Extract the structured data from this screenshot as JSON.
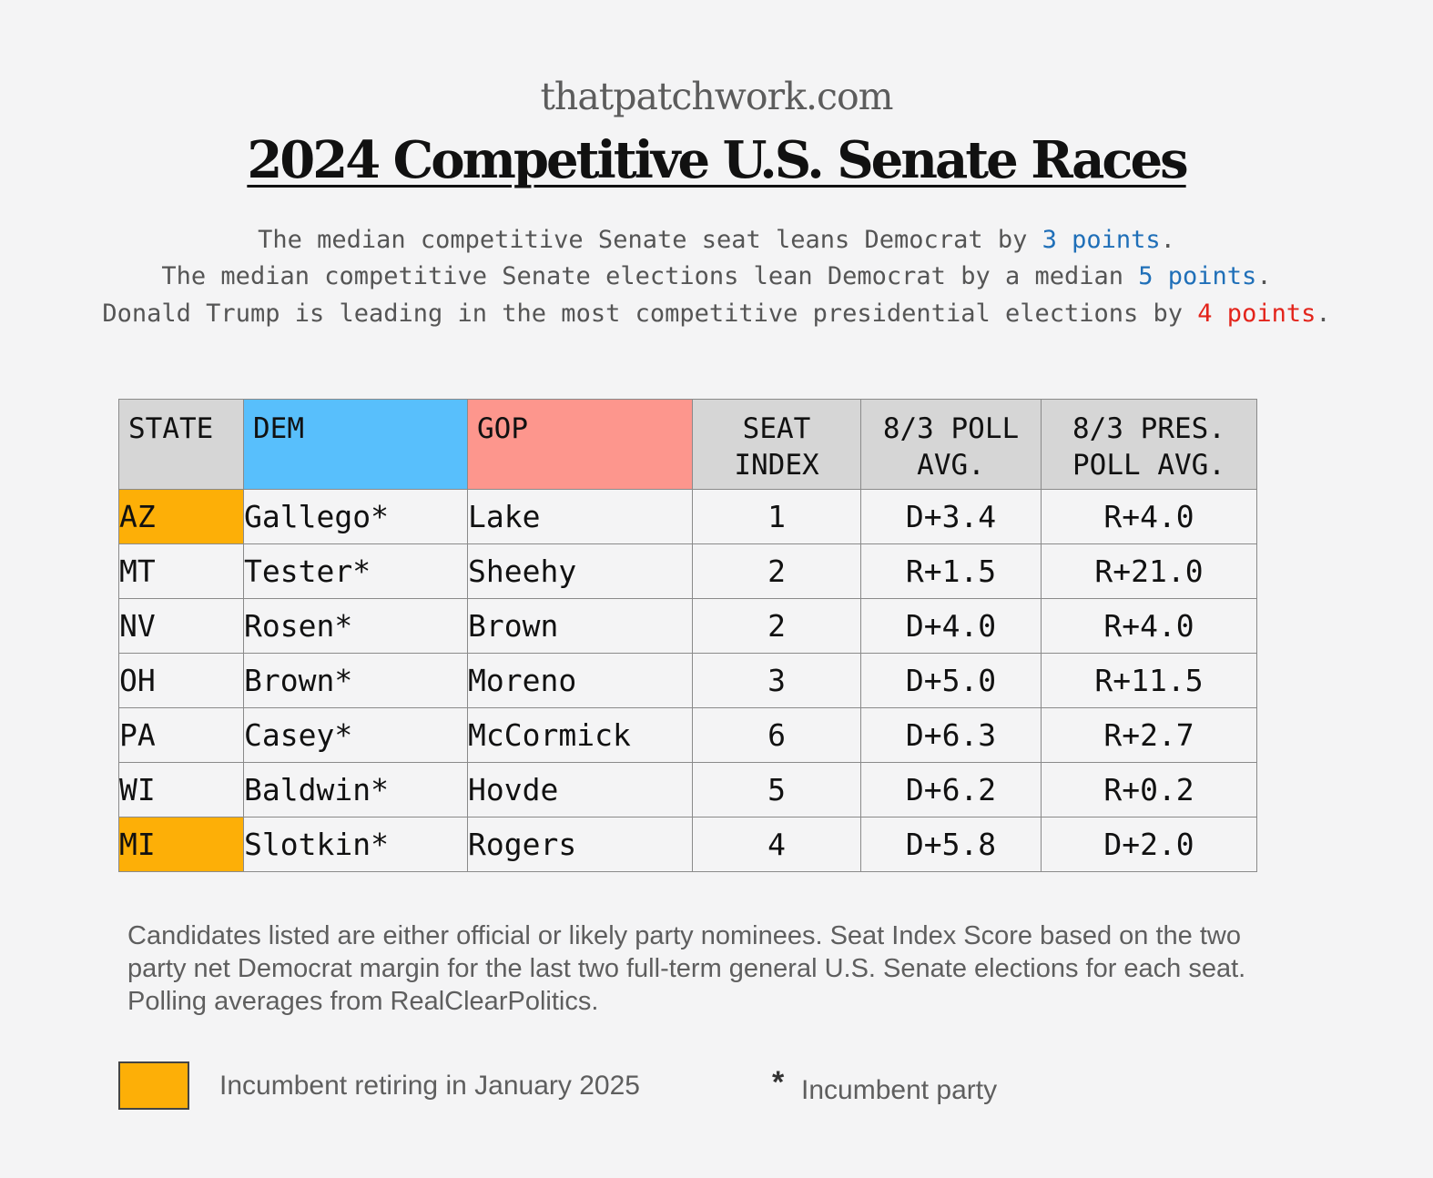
{
  "header": {
    "site": "thatpatchwork.com",
    "title": "2024 Competitive U.S. Senate Races"
  },
  "summary": {
    "line1": {
      "pre": "The median competitive Senate seat leans Democrat by ",
      "highlight": "3 points",
      "post": "."
    },
    "line2": {
      "pre": "The median competitive Senate elections lean Democrat by a median ",
      "highlight": "5 points",
      "post": "."
    },
    "line3": {
      "pre": "Donald Trump is leading in the most competitive presidential elections by ",
      "highlight": "4 points",
      "post": "."
    }
  },
  "table": {
    "headers": {
      "state": "STATE",
      "dem": "DEM",
      "gop": "GOP",
      "seat_index": [
        "SEAT",
        "INDEX"
      ],
      "poll_avg": [
        "8/3 POLL",
        "AVG."
      ],
      "pres_poll_avg": [
        "8/3 PRES.",
        "POLL AVG."
      ]
    },
    "rows": [
      {
        "state": "AZ",
        "retiring": true,
        "dem": "Gallego*",
        "gop": "Lake",
        "seat_index": "1",
        "poll": "D+3.4",
        "pres": "R+4.0"
      },
      {
        "state": "MT",
        "retiring": false,
        "dem": "Tester*",
        "gop": "Sheehy",
        "seat_index": "2",
        "poll": "R+1.5",
        "pres": "R+21.0"
      },
      {
        "state": "NV",
        "retiring": false,
        "dem": "Rosen*",
        "gop": "Brown",
        "seat_index": "2",
        "poll": "D+4.0",
        "pres": "R+4.0"
      },
      {
        "state": "OH",
        "retiring": false,
        "dem": "Brown*",
        "gop": "Moreno",
        "seat_index": "3",
        "poll": "D+5.0",
        "pres": "R+11.5"
      },
      {
        "state": "PA",
        "retiring": false,
        "dem": "Casey*",
        "gop": "McCormick",
        "seat_index": "6",
        "poll": "D+6.3",
        "pres": "R+2.7"
      },
      {
        "state": "WI",
        "retiring": false,
        "dem": "Baldwin*",
        "gop": "Hovde",
        "seat_index": "5",
        "poll": "D+6.2",
        "pres": "R+0.2"
      },
      {
        "state": "MI",
        "retiring": true,
        "dem": "Slotkin*",
        "gop": "Rogers",
        "seat_index": "4",
        "poll": "D+5.8",
        "pres": "D+2.0"
      }
    ]
  },
  "footnote": "Candidates listed are either official or likely party nominees. Seat Index Score based on the two party net Democrat margin for the last two full-term general U.S. Senate elections for each seat. Polling averages from RealClearPolitics.",
  "legend": {
    "retiring_label": "Incumbent retiring in January 2025",
    "star_symbol": "*",
    "incumbent_label": "Incumbent party"
  },
  "colors": {
    "retiring": "#fdaf07",
    "dem_header": "#58bffc",
    "gop_header": "#fd968d",
    "dem_value": "#1a9df6",
    "gop_value": "#e3241b"
  }
}
